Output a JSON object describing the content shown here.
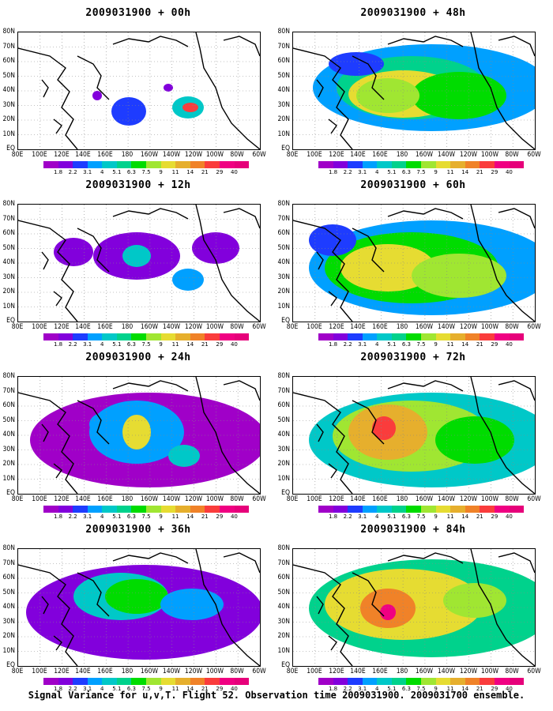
{
  "panels": [
    {
      "title": "2009031900 + 00h",
      "intensity": 0.12
    },
    {
      "title": "2009031900 + 48h",
      "intensity": 0.62
    },
    {
      "title": "2009031900 + 12h",
      "intensity": 0.22
    },
    {
      "title": "2009031900 + 60h",
      "intensity": 0.72
    },
    {
      "title": "2009031900 + 24h",
      "intensity": 0.38
    },
    {
      "title": "2009031900 + 72h",
      "intensity": 0.82
    },
    {
      "title": "2009031900 + 36h",
      "intensity": 0.52
    },
    {
      "title": "2009031900 + 84h",
      "intensity": 0.9
    }
  ],
  "lat_labels": [
    "80N",
    "70N",
    "60N",
    "50N",
    "40N",
    "30N",
    "20N",
    "10N",
    "EQ"
  ],
  "lon_labels": [
    "80E",
    "100E",
    "120E",
    "140E",
    "160E",
    "180",
    "160W",
    "140W",
    "120W",
    "100W",
    "80W",
    "60W"
  ],
  "colorbar": {
    "labels": [
      "1.8",
      "2.2",
      "3.1",
      "4",
      "5.1",
      "6.3",
      "7.5",
      "9",
      "11",
      "14",
      "21",
      "29",
      "40"
    ],
    "colors": [
      "#a000c8",
      "#8200dc",
      "#1e3cff",
      "#00a0ff",
      "#00c8c8",
      "#00d28c",
      "#00dc00",
      "#a0e632",
      "#e6dc32",
      "#e6af2d",
      "#f08228",
      "#fa3c3c",
      "#f00082"
    ]
  },
  "caption": "Signal Variance for u,v,T. Flight 52. Observation time 2009031900. 2009031700 ensemble."
}
